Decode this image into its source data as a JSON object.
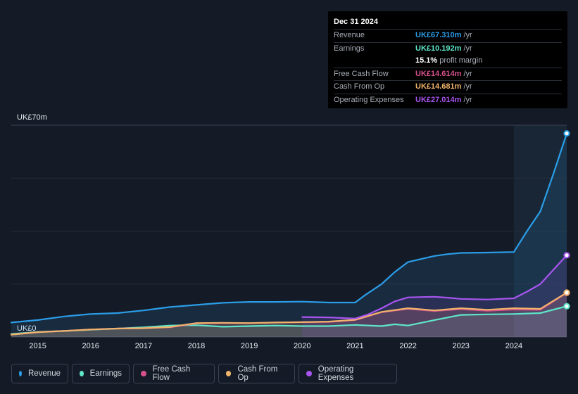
{
  "chart_data": {
    "type": "area",
    "title": "",
    "ylabel_top": "UK£70m",
    "ylabel_bottom": "UK£0",
    "ylim": [
      0,
      70
    ],
    "xlim": [
      2014.5,
      2025.0
    ],
    "x_ticks": [
      "2015",
      "2016",
      "2017",
      "2018",
      "2019",
      "2020",
      "2021",
      "2022",
      "2023",
      "2024"
    ],
    "highlight_start": 2024.0,
    "series": [
      {
        "name": "Revenue",
        "color": "#2b9de8",
        "points": [
          [
            2014.5,
            4.8
          ],
          [
            2015.0,
            5.6
          ],
          [
            2015.5,
            6.8
          ],
          [
            2016.0,
            7.6
          ],
          [
            2016.5,
            7.9
          ],
          [
            2017.0,
            8.8
          ],
          [
            2017.5,
            9.9
          ],
          [
            2018.0,
            10.6
          ],
          [
            2018.5,
            11.3
          ],
          [
            2019.0,
            11.6
          ],
          [
            2019.5,
            11.6
          ],
          [
            2020.0,
            11.7
          ],
          [
            2020.5,
            11.4
          ],
          [
            2021.0,
            11.4
          ],
          [
            2021.2,
            14.0
          ],
          [
            2021.5,
            17.5
          ],
          [
            2021.75,
            21.5
          ],
          [
            2022.0,
            24.8
          ],
          [
            2022.25,
            25.8
          ],
          [
            2022.5,
            26.8
          ],
          [
            2022.75,
            27.4
          ],
          [
            2023.0,
            27.8
          ],
          [
            2023.5,
            27.9
          ],
          [
            2024.0,
            28.1
          ],
          [
            2024.25,
            35.0
          ],
          [
            2024.5,
            41.5
          ],
          [
            2024.75,
            54.0
          ],
          [
            2025.0,
            67.31
          ]
        ]
      },
      {
        "name": "Earnings",
        "color": "#5ee6c8",
        "points": [
          [
            2014.5,
            1.0
          ],
          [
            2015.0,
            1.7
          ],
          [
            2015.5,
            2.0
          ],
          [
            2016.0,
            2.4
          ],
          [
            2016.5,
            2.8
          ],
          [
            2017.0,
            3.2
          ],
          [
            2017.5,
            3.8
          ],
          [
            2018.0,
            3.9
          ],
          [
            2018.5,
            3.4
          ],
          [
            2019.0,
            3.6
          ],
          [
            2019.5,
            3.8
          ],
          [
            2020.0,
            3.6
          ],
          [
            2020.5,
            3.6
          ],
          [
            2021.0,
            4.0
          ],
          [
            2021.5,
            3.6
          ],
          [
            2021.75,
            4.2
          ],
          [
            2022.0,
            3.8
          ],
          [
            2022.5,
            5.6
          ],
          [
            2023.0,
            7.3
          ],
          [
            2023.5,
            7.5
          ],
          [
            2024.0,
            7.6
          ],
          [
            2024.5,
            7.9
          ],
          [
            2025.0,
            10.192
          ]
        ]
      },
      {
        "name": "Free Cash Flow",
        "color": "#d6518b",
        "points": [
          [
            2014.5,
            0.8
          ],
          [
            2015.0,
            1.6
          ],
          [
            2015.5,
            2.0
          ],
          [
            2016.0,
            2.5
          ],
          [
            2016.5,
            2.8
          ],
          [
            2017.0,
            2.9
          ],
          [
            2017.5,
            3.2
          ],
          [
            2018.0,
            4.5
          ],
          [
            2018.5,
            4.6
          ],
          [
            2019.0,
            4.6
          ],
          [
            2019.5,
            4.8
          ],
          [
            2020.0,
            4.9
          ],
          [
            2020.5,
            5.0
          ],
          [
            2021.0,
            5.6
          ],
          [
            2021.5,
            8.2
          ],
          [
            2022.0,
            9.3
          ],
          [
            2022.5,
            8.6
          ],
          [
            2023.0,
            9.2
          ],
          [
            2023.5,
            8.7
          ],
          [
            2024.0,
            9.1
          ],
          [
            2024.5,
            9.0
          ],
          [
            2025.0,
            14.614
          ]
        ]
      },
      {
        "name": "Cash From Op",
        "color": "#f0b46c",
        "points": [
          [
            2014.5,
            0.8
          ],
          [
            2015.0,
            1.6
          ],
          [
            2015.5,
            2.0
          ],
          [
            2016.0,
            2.5
          ],
          [
            2016.5,
            2.8
          ],
          [
            2017.0,
            2.9
          ],
          [
            2017.5,
            3.3
          ],
          [
            2018.0,
            4.6
          ],
          [
            2018.5,
            4.7
          ],
          [
            2019.0,
            4.6
          ],
          [
            2019.5,
            4.8
          ],
          [
            2020.0,
            4.9
          ],
          [
            2020.5,
            5.1
          ],
          [
            2021.0,
            5.7
          ],
          [
            2021.5,
            8.3
          ],
          [
            2022.0,
            9.5
          ],
          [
            2022.5,
            8.8
          ],
          [
            2023.0,
            9.5
          ],
          [
            2023.5,
            9.0
          ],
          [
            2024.0,
            9.5
          ],
          [
            2024.5,
            9.3
          ],
          [
            2025.0,
            14.681
          ]
        ]
      },
      {
        "name": "Operating Expenses",
        "color": "#a855f0",
        "points": [
          [
            2020.0,
            6.6
          ],
          [
            2020.5,
            6.5
          ],
          [
            2021.0,
            6.1
          ],
          [
            2021.25,
            7.5
          ],
          [
            2021.5,
            9.5
          ],
          [
            2021.75,
            11.8
          ],
          [
            2022.0,
            13.1
          ],
          [
            2022.25,
            13.2
          ],
          [
            2022.5,
            13.3
          ],
          [
            2022.75,
            13.0
          ],
          [
            2023.0,
            12.6
          ],
          [
            2023.5,
            12.4
          ],
          [
            2024.0,
            12.8
          ],
          [
            2024.25,
            15.0
          ],
          [
            2024.5,
            17.5
          ],
          [
            2025.0,
            27.014
          ]
        ]
      }
    ]
  },
  "tooltip": {
    "date": "Dec 31 2024",
    "rows": [
      {
        "label": "Revenue",
        "value": "UK£67.310m",
        "unit": "/yr",
        "color": "#2b9de8"
      },
      {
        "label": "Earnings",
        "value": "UK£10.192m",
        "unit": "/yr",
        "color": "#5ee6c8"
      },
      {
        "label": "",
        "value": "15.1%",
        "unit": "profit margin",
        "color": "#ffffff"
      },
      {
        "label": "Free Cash Flow",
        "value": "UK£14.614m",
        "unit": "/yr",
        "color": "#d6518b"
      },
      {
        "label": "Cash From Op",
        "value": "UK£14.681m",
        "unit": "/yr",
        "color": "#f0b46c"
      },
      {
        "label": "Operating Expenses",
        "value": "UK£27.014m",
        "unit": "/yr",
        "color": "#a855f0"
      }
    ]
  },
  "legend": [
    {
      "label": "Revenue",
      "color": "#2b9de8"
    },
    {
      "label": "Earnings",
      "color": "#5ee6c8"
    },
    {
      "label": "Free Cash Flow",
      "color": "#d6518b"
    },
    {
      "label": "Cash From Op",
      "color": "#f0b46c"
    },
    {
      "label": "Operating Expenses",
      "color": "#a855f0"
    }
  ]
}
